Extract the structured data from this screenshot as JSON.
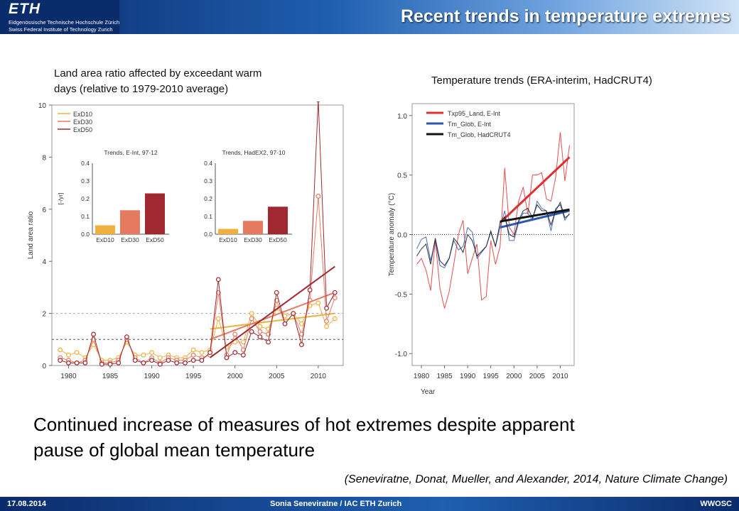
{
  "header": {
    "logo": "ETH",
    "logo_line1": "Eidgenössische Technische Hochschule Zürich",
    "logo_line2": "Swiss Federal Institute of Technology Zurich",
    "title": "Recent trends in temperature extremes"
  },
  "left_caption": {
    "line1": "Land area ratio affected by exceedant warm",
    "line2": "days (relative to 1979-2010 average)"
  },
  "right_caption": "Temperature trends (ERA-interim, HadCRUT4)",
  "main_text": {
    "line1": "Continued increase of measures of hot extremes despite apparent",
    "line2": "pause of global mean temperature"
  },
  "citation": "(Seneviratne, Donat, Mueller, and Alexander, 2014, Nature Climate Change)",
  "footer": {
    "date": "17.08.2014",
    "author": "Sonia Seneviratne / IAC ETH Zurich",
    "event": "WWOSC"
  },
  "chart_data": [
    {
      "type": "line",
      "ylabel": "Land area ratio",
      "xlim": [
        1978,
        2013
      ],
      "ylim": [
        0,
        10
      ],
      "xticks": [
        1980,
        1985,
        1990,
        1995,
        2000,
        2005,
        2010
      ],
      "yticks": [
        0,
        2,
        4,
        6,
        8,
        10
      ],
      "refLines": [
        1,
        2
      ],
      "x": [
        1979,
        1980,
        1981,
        1982,
        1983,
        1984,
        1985,
        1986,
        1987,
        1988,
        1989,
        1990,
        1991,
        1992,
        1993,
        1994,
        1995,
        1996,
        1997,
        1998,
        1999,
        2000,
        2001,
        2002,
        2003,
        2004,
        2005,
        2006,
        2007,
        2008,
        2009,
        2010,
        2011,
        2012
      ],
      "colors": [
        "#f0b040",
        "#e57a60",
        "#a02830"
      ],
      "series": [
        {
          "name": "ExD10",
          "values": [
            0.6,
            0.4,
            0.5,
            0.3,
            0.8,
            0.2,
            0.2,
            0.3,
            0.9,
            0.4,
            0.4,
            0.5,
            0.3,
            0.4,
            0.3,
            0.3,
            0.6,
            0.5,
            0.6,
            1.8,
            0.7,
            0.9,
            0.9,
            2.0,
            1.5,
            1.4,
            2.2,
            1.9,
            2.0,
            1.6,
            2.3,
            2.4,
            1.5,
            1.8
          ],
          "trend": [
            [
              1997,
              1.4
            ],
            [
              2012,
              2.0
            ]
          ]
        },
        {
          "name": "ExD30",
          "values": [
            0.3,
            0.2,
            0.1,
            0.2,
            1.0,
            0.1,
            0.1,
            0.2,
            1.0,
            0.3,
            0.1,
            0.3,
            0.1,
            0.3,
            0.2,
            0.2,
            0.4,
            0.3,
            0.4,
            2.8,
            0.4,
            1.2,
            0.6,
            1.8,
            1.3,
            1.2,
            2.5,
            1.6,
            2.0,
            1.2,
            2.5,
            6.5,
            1.7,
            2.6
          ],
          "trend": [
            [
              1997,
              1.0
            ],
            [
              2012,
              2.8
            ]
          ]
        },
        {
          "name": "ExD50",
          "values": [
            0.2,
            0.1,
            0.1,
            0.1,
            1.2,
            0.05,
            0.05,
            0.1,
            1.1,
            0.2,
            0.1,
            0.2,
            0.05,
            0.2,
            0.1,
            0.1,
            0.2,
            0.2,
            0.5,
            3.3,
            0.3,
            0.5,
            0.4,
            1.3,
            1.1,
            0.9,
            2.8,
            1.6,
            2.0,
            0.8,
            2.9,
            10.2,
            2.2,
            2.8
          ],
          "trend": [
            [
              1997,
              0.3
            ],
            [
              2012,
              3.8
            ]
          ]
        }
      ],
      "insets": [
        {
          "title": "Trends, E-Int, 97-12",
          "ylabel": "[-/yr]",
          "yticks": [
            "0.0",
            "0.1",
            "0.2",
            "0.3",
            "0.4"
          ],
          "ymax": 0.4,
          "categories": [
            "ExD10",
            "ExD30",
            "ExD50"
          ],
          "values": [
            0.05,
            0.135,
            0.23
          ]
        },
        {
          "title": "Trends, HadEX2, 97-10",
          "ylabel": "",
          "yticks": [
            "0.0",
            "0.1",
            "0.2",
            "0.3",
            "0.4"
          ],
          "ymax": 0.4,
          "categories": [
            "ExD10",
            "ExD30",
            "ExD50"
          ],
          "values": [
            0.03,
            0.075,
            0.155
          ]
        }
      ]
    },
    {
      "type": "line",
      "xlabel": "Year",
      "ylabel": "Temperature anomaly (°C)",
      "xlim": [
        1978,
        2013
      ],
      "ylim": [
        -1.1,
        1.1
      ],
      "xticks": [
        1980,
        1985,
        1990,
        1995,
        2000,
        2005,
        2010
      ],
      "yticks": [
        "-1.0",
        "-0.5",
        "0.0",
        "0.5",
        "1.0"
      ],
      "x": [
        1979,
        1980,
        1981,
        1982,
        1983,
        1984,
        1985,
        1986,
        1987,
        1988,
        1989,
        1990,
        1991,
        1992,
        1993,
        1994,
        1995,
        1996,
        1997,
        1998,
        1999,
        2000,
        2001,
        2002,
        2003,
        2004,
        2005,
        2006,
        2007,
        2008,
        2009,
        2010,
        2011,
        2012
      ],
      "series": [
        {
          "name": "Txp95_Land, E-Int",
          "color": "#e03030",
          "values": [
            -0.25,
            -0.2,
            -0.3,
            -0.47,
            -0.05,
            -0.45,
            -0.62,
            -0.48,
            -0.25,
            0.0,
            0.12,
            -0.33,
            -0.2,
            -0.08,
            -0.55,
            -0.52,
            -0.05,
            -0.25,
            -0.1,
            0.56,
            0.06,
            0.0,
            0.28,
            0.4,
            0.17,
            0.5,
            0.5,
            0.52,
            0.3,
            0.28,
            0.48,
            0.86,
            0.45,
            0.75
          ],
          "trend": [
            [
              1997,
              0.1
            ],
            [
              2012,
              0.65
            ]
          ]
        },
        {
          "name": "Tm_Glob, E-Int",
          "color": "#2c57b0",
          "values": [
            -0.12,
            -0.04,
            -0.02,
            -0.22,
            -0.05,
            -0.26,
            -0.28,
            -0.2,
            -0.05,
            -0.13,
            -0.1,
            0.06,
            0.02,
            -0.2,
            -0.15,
            -0.1,
            0.02,
            -0.1,
            0.06,
            0.2,
            -0.05,
            -0.05,
            0.1,
            0.18,
            0.18,
            0.12,
            0.28,
            0.22,
            0.2,
            0.03,
            0.22,
            0.25,
            0.12,
            0.18
          ],
          "trend": [
            [
              1997,
              0.06
            ],
            [
              2012,
              0.2
            ]
          ]
        },
        {
          "name": "Tm_Glob, HadCRUT4",
          "color": "#111111",
          "values": [
            -0.18,
            -0.12,
            -0.08,
            -0.25,
            -0.03,
            -0.22,
            -0.26,
            -0.2,
            -0.03,
            -0.08,
            -0.15,
            0.0,
            -0.05,
            -0.18,
            -0.14,
            -0.1,
            0.03,
            -0.1,
            0.1,
            0.15,
            0.0,
            -0.02,
            0.12,
            0.2,
            0.22,
            0.14,
            0.25,
            0.2,
            0.2,
            0.08,
            0.2,
            0.27,
            0.14,
            0.17
          ],
          "trend": [
            [
              1997,
              0.11
            ],
            [
              2012,
              0.21
            ]
          ]
        }
      ]
    }
  ]
}
